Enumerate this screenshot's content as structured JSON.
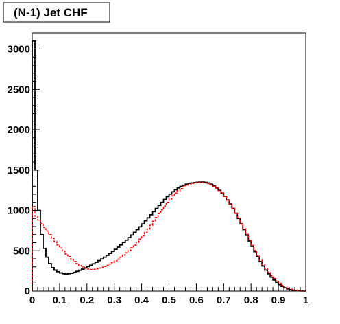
{
  "chart_data": {
    "type": "line",
    "title": "(N-1) Jet CHF",
    "xlim": [
      0,
      1
    ],
    "ylim": [
      0,
      3200
    ],
    "x_ticks": [
      "0",
      "0.1",
      "0.2",
      "0.3",
      "0.4",
      "0.5",
      "0.6",
      "0.7",
      "0.8",
      "0.9",
      "1"
    ],
    "y_ticks": [
      "0",
      "500",
      "1000",
      "1500",
      "2000",
      "2500",
      "3000"
    ],
    "bins": 100,
    "series": [
      {
        "style": "step",
        "color": "#000000",
        "values": [
          3100,
          1500,
          1000,
          700,
          530,
          420,
          340,
          290,
          260,
          240,
          225,
          215,
          212,
          215,
          222,
          232,
          244,
          258,
          272,
          287,
          303,
          320,
          338,
          357,
          377,
          398,
          420,
          443,
          467,
          492,
          518,
          545,
          573,
          602,
          632,
          663,
          695,
          728,
          762,
          797,
          833,
          870,
          908,
          946,
          985,
          1024,
          1062,
          1100,
          1136,
          1170,
          1202,
          1231,
          1257,
          1279,
          1298,
          1313,
          1325,
          1334,
          1340,
          1345,
          1350,
          1352,
          1352,
          1348,
          1340,
          1325,
          1305,
          1280,
          1250,
          1215,
          1175,
          1130,
          1080,
          1025,
          965,
          900,
          832,
          762,
          692,
          622,
          554,
          488,
          425,
          366,
          311,
          260,
          214,
          173,
          137,
          106,
          80,
          58,
          41,
          28,
          18,
          11,
          6,
          3,
          1,
          0
        ]
      },
      {
        "style": "dashed",
        "color": "#ff0000",
        "values": [
          1050,
          930,
          880,
          835,
          790,
          745,
          700,
          655,
          612,
          572,
          533,
          496,
          460,
          427,
          396,
          368,
          342,
          318,
          298,
          282,
          272,
          268,
          270,
          276,
          284,
          294,
          306,
          320,
          336,
          354,
          374,
          396,
          420,
          446,
          474,
          504,
          536,
          570,
          606,
          644,
          684,
          726,
          770,
          816,
          864,
          912,
          960,
          1008,
          1055,
          1100,
          1142,
          1180,
          1214,
          1244,
          1270,
          1292,
          1310,
          1324,
          1334,
          1341,
          1345,
          1347,
          1346,
          1341,
          1332,
          1318,
          1299,
          1275,
          1246,
          1212,
          1172,
          1127,
          1077,
          1023,
          965,
          903,
          838,
          771,
          703,
          635,
          568,
          503,
          441,
          383,
          329,
          279,
          234,
          193,
          157,
          125,
          97,
          73,
          53,
          37,
          24,
          15,
          8,
          4,
          2,
          0
        ]
      }
    ]
  }
}
